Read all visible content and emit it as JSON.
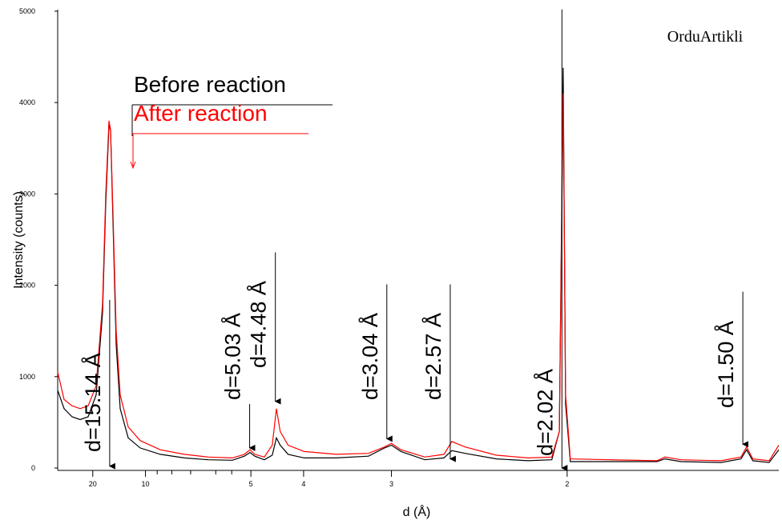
{
  "chart_data": {
    "type": "line",
    "watermark": "OrduArtikli",
    "xlabel": "d (Å)",
    "ylabel": "Intensity (counts)",
    "xscale": "reciprocal",
    "xlim": [
      59.8,
      1.427
    ],
    "ylim": [
      0,
      5000
    ],
    "xticks": [
      20,
      10,
      5,
      4,
      3,
      2
    ],
    "xminorticks": [
      9,
      8,
      7,
      6,
      5.5
    ],
    "yticks": [
      0,
      1000,
      2000,
      3000,
      4000,
      5000
    ],
    "legend": "upper-left",
    "x": [
      59.8,
      43.87,
      32.9,
      26.32,
      21.93,
      18.8,
      16.87,
      16.05,
      15.3,
      14.95,
      14.46,
      13.85,
      13.16,
      11.96,
      10.53,
      8.77,
      7.31,
      6.27,
      5.48,
      5.16,
      5.02,
      4.91,
      4.7,
      4.54,
      4.46,
      4.39,
      4.25,
      3.99,
      3.56,
      3.21,
      3.06,
      3.0,
      2.92,
      2.74,
      2.61,
      2.56,
      2.48,
      2.31,
      2.16,
      2.06,
      2.03,
      2.015,
      2.006,
      1.988,
      1.853,
      1.709,
      1.687,
      1.645,
      1.548,
      1.504,
      1.492,
      1.479,
      1.446,
      1.427
    ],
    "series": [
      {
        "name": "Before reaction",
        "color": "#000000",
        "values": [
          850,
          650,
          560,
          530,
          560,
          800,
          1700,
          2900,
          3750,
          3700,
          2700,
          1350,
          650,
          330,
          220,
          150,
          110,
          90,
          85,
          130,
          170,
          130,
          90,
          140,
          330,
          250,
          150,
          110,
          110,
          130,
          220,
          250,
          180,
          90,
          110,
          190,
          160,
          100,
          80,
          90,
          400,
          4380,
          700,
          70,
          70,
          70,
          100,
          70,
          60,
          100,
          200,
          80,
          60,
          200
        ]
      },
      {
        "name": "After reaction",
        "color": "#ff0000",
        "values": [
          1050,
          750,
          680,
          650,
          680,
          900,
          1800,
          3000,
          3800,
          3700,
          2800,
          1500,
          800,
          450,
          300,
          200,
          150,
          120,
          110,
          150,
          200,
          150,
          120,
          250,
          650,
          400,
          250,
          180,
          150,
          160,
          230,
          270,
          200,
          120,
          150,
          290,
          230,
          140,
          110,
          120,
          400,
          4100,
          800,
          100,
          90,
          80,
          120,
          90,
          80,
          120,
          230,
          100,
          80,
          250
        ]
      }
    ],
    "annotations": [
      {
        "text": "d=15.14 Å",
        "x": 15.14,
        "y_from": 1840,
        "y_to": 20
      },
      {
        "text": "d=5.03 Å",
        "x": 5.03,
        "y_from": 700,
        "y_to": 220
      },
      {
        "text": "d=4.48 Å",
        "x": 4.48,
        "y_from": 2360,
        "y_to": 730
      },
      {
        "text": "d=3.04 Å",
        "x": 3.04,
        "y_from": 2010,
        "y_to": 320
      },
      {
        "text": "d=2.57 Å",
        "x": 2.57,
        "y_from": 2010,
        "y_to": 100
      },
      {
        "text": "d=2.02 Å",
        "x": 2.02,
        "y_from": 5020,
        "y_to": 0
      },
      {
        "text": "d=1.50 Å",
        "x": 1.5,
        "y_from": 1930,
        "y_to": 260
      }
    ]
  }
}
